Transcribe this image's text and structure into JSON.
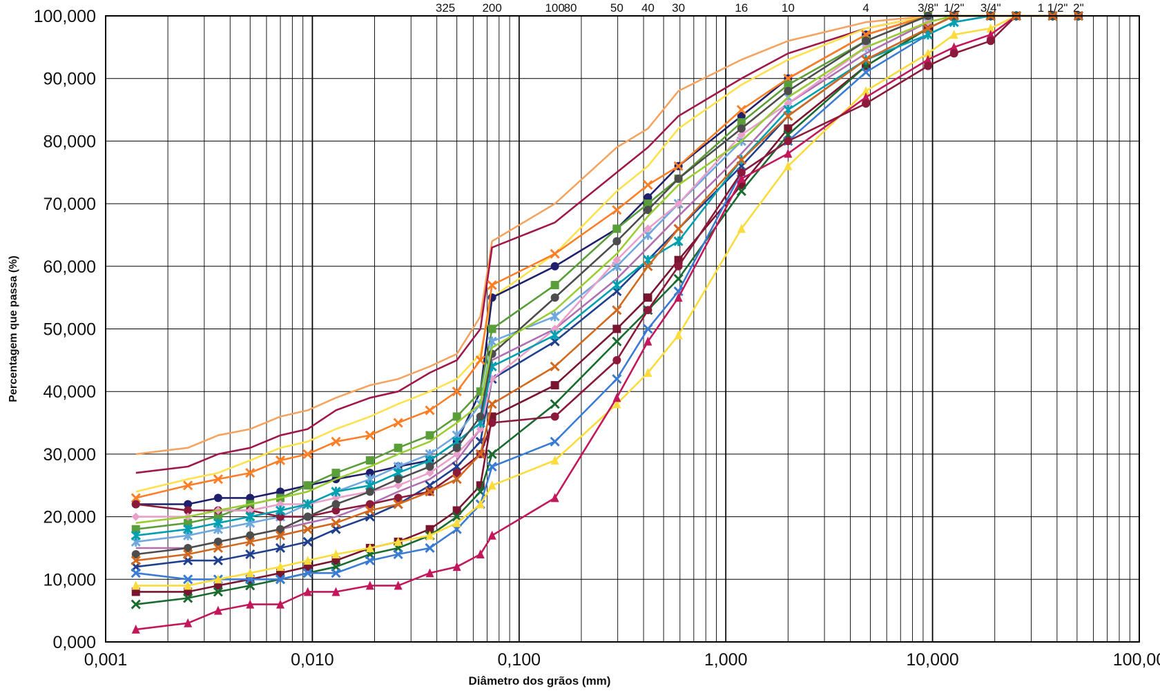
{
  "chart_data": {
    "type": "line",
    "title": "",
    "xlabel": "Diâmetro dos grãos (mm)",
    "ylabel": "Percentagem que passa (%)",
    "x_scale": "log",
    "xlim": [
      0.001,
      100
    ],
    "ylim": [
      0,
      100
    ],
    "grid": true,
    "legend": "none",
    "x_ticks": [
      {
        "v": 0.001,
        "label": "0,001"
      },
      {
        "v": 0.01,
        "label": "0,010"
      },
      {
        "v": 0.1,
        "label": "0,100"
      },
      {
        "v": 1,
        "label": "1,000"
      },
      {
        "v": 10,
        "label": "10,000"
      },
      {
        "v": 100,
        "label": "100,00"
      }
    ],
    "y_ticks": [
      {
        "v": 0,
        "label": "0,000"
      },
      {
        "v": 10,
        "label": "10,000"
      },
      {
        "v": 20,
        "label": "20,000"
      },
      {
        "v": 30,
        "label": "30,000"
      },
      {
        "v": 40,
        "label": "40,000"
      },
      {
        "v": 50,
        "label": "50,000"
      },
      {
        "v": 60,
        "label": "60,000"
      },
      {
        "v": 70,
        "label": "70,000"
      },
      {
        "v": 80,
        "label": "80,000"
      },
      {
        "v": 90,
        "label": "90,000"
      },
      {
        "v": 100,
        "label": "100,000"
      }
    ],
    "sieve_labels": [
      {
        "v": 0.044,
        "label": "325"
      },
      {
        "v": 0.074,
        "label": "200"
      },
      {
        "v": 0.149,
        "label": "100"
      },
      {
        "v": 0.177,
        "label": "80"
      },
      {
        "v": 0.297,
        "label": "50"
      },
      {
        "v": 0.42,
        "label": "40"
      },
      {
        "v": 0.59,
        "label": "30"
      },
      {
        "v": 1.19,
        "label": "16"
      },
      {
        "v": 2.0,
        "label": "10"
      },
      {
        "v": 4.76,
        "label": "4"
      },
      {
        "v": 9.5,
        "label": "3/8\""
      },
      {
        "v": 12.7,
        "label": "1/2\""
      },
      {
        "v": 19.1,
        "label": "3/4\""
      },
      {
        "v": 38.1,
        "label": "1 1/2\""
      },
      {
        "v": 50.8,
        "label": "2\""
      }
    ],
    "x": [
      0.0014,
      0.0025,
      0.0035,
      0.005,
      0.007,
      0.0095,
      0.013,
      0.019,
      0.026,
      0.037,
      0.05,
      0.065,
      0.074,
      0.149,
      0.297,
      0.42,
      0.59,
      1.19,
      2.0,
      4.76,
      9.5,
      12.7,
      19.1,
      25.4,
      38.1,
      50.8
    ],
    "series": [
      {
        "color": "#f4a460",
        "values": [
          30,
          31,
          33,
          34,
          36,
          37,
          39,
          41,
          42,
          44,
          46,
          52,
          64,
          70,
          79,
          82,
          88,
          93,
          96,
          99,
          100,
          100,
          100,
          100,
          100,
          100
        ]
      },
      {
        "color": "#a0184a",
        "values": [
          27,
          28,
          30,
          31,
          33,
          34,
          37,
          39,
          40,
          43,
          45,
          50,
          63,
          67,
          75,
          79,
          84,
          90,
          94,
          98,
          100,
          100,
          100,
          100,
          100,
          100
        ]
      },
      {
        "color": "#ffe14d",
        "values": [
          24,
          26,
          27,
          29,
          31,
          32,
          34,
          36,
          38,
          40,
          42,
          46,
          55,
          62,
          72,
          76,
          82,
          89,
          93,
          98,
          100,
          100,
          100,
          100,
          100,
          100
        ]
      },
      {
        "color": "#1f1f6b",
        "marker": "circle",
        "values": [
          22,
          22,
          23,
          23,
          24,
          25,
          26,
          27,
          28,
          29,
          32,
          40,
          55,
          60,
          66,
          71,
          76,
          84,
          90,
          97,
          100,
          100,
          100,
          100,
          100,
          100
        ]
      },
      {
        "color": "#ff7f27",
        "marker": "x",
        "values": [
          23,
          25,
          26,
          27,
          29,
          30,
          32,
          33,
          35,
          37,
          40,
          45,
          57,
          62,
          69,
          73,
          76,
          85,
          90,
          97,
          100,
          100,
          100,
          100,
          100,
          100
        ]
      },
      {
        "color": "#5a9e3a",
        "marker": "square",
        "values": [
          18,
          19,
          20,
          22,
          23,
          25,
          27,
          29,
          31,
          33,
          36,
          40,
          50,
          57,
          66,
          70,
          74,
          83,
          89,
          96,
          100,
          100,
          100,
          100,
          100,
          100
        ]
      },
      {
        "color": "#6fa8dc",
        "marker": "star",
        "values": [
          16,
          17,
          18,
          19,
          20,
          22,
          24,
          26,
          28,
          30,
          33,
          38,
          48,
          52,
          60,
          65,
          70,
          80,
          87,
          95,
          99,
          100,
          100,
          100,
          100,
          100
        ]
      },
      {
        "color": "#b06fb0",
        "values": [
          15,
          15,
          16,
          17,
          18,
          19,
          20,
          22,
          24,
          26,
          29,
          34,
          45,
          50,
          58,
          63,
          68,
          78,
          86,
          94,
          99,
          100,
          100,
          100,
          100,
          100
        ]
      },
      {
        "color": "#1f3f8f",
        "marker": "x",
        "values": [
          12,
          13,
          13,
          14,
          15,
          16,
          18,
          20,
          22,
          25,
          28,
          32,
          42,
          48,
          56,
          61,
          66,
          76,
          84,
          93,
          98,
          100,
          100,
          100,
          100,
          100
        ]
      },
      {
        "color": "#7a1530",
        "marker": "square",
        "values": [
          8,
          8,
          9,
          10,
          11,
          12,
          13,
          15,
          16,
          18,
          21,
          25,
          36,
          41,
          50,
          55,
          61,
          73,
          82,
          92,
          98,
          100,
          100,
          100,
          100,
          100
        ]
      },
      {
        "color": "#1a6b2f",
        "marker": "x",
        "values": [
          6,
          7,
          8,
          9,
          10,
          11,
          12,
          14,
          15,
          17,
          20,
          24,
          30,
          38,
          48,
          53,
          58,
          72,
          81,
          92,
          98,
          100,
          100,
          100,
          100,
          100
        ]
      },
      {
        "color": "#3a7bd5",
        "marker": "x",
        "values": [
          11,
          10,
          10,
          10,
          10,
          11,
          11,
          13,
          14,
          15,
          18,
          22,
          28,
          32,
          42,
          50,
          56,
          75,
          80,
          91,
          97,
          99,
          100,
          100,
          100,
          100
        ]
      },
      {
        "color": "#fcdc3c",
        "marker": "triangle",
        "values": [
          9,
          9,
          10,
          11,
          12,
          13,
          14,
          15,
          16,
          17,
          19,
          22,
          25,
          29,
          38,
          43,
          49,
          66,
          76,
          88,
          94,
          97,
          98,
          100,
          100,
          100
        ]
      },
      {
        "color": "#c2185b",
        "marker": "triangle",
        "values": [
          2,
          3,
          5,
          6,
          6,
          8,
          8,
          9,
          9,
          11,
          12,
          14,
          17,
          23,
          39,
          48,
          55,
          74,
          78,
          87,
          93,
          95,
          97,
          100,
          100,
          100
        ]
      },
      {
        "color": "#8b1a3a",
        "marker": "circle",
        "values": [
          22,
          21,
          21,
          21,
          20,
          20,
          21,
          22,
          23,
          24,
          27,
          30,
          35,
          36,
          45,
          53,
          60,
          75,
          80,
          86,
          92,
          94,
          96,
          100,
          100,
          100
        ]
      },
      {
        "color": "#e89fc9",
        "marker": "diamond",
        "values": [
          20,
          20,
          21,
          21,
          22,
          22,
          23,
          24,
          25,
          27,
          30,
          34,
          42,
          50,
          61,
          66,
          70,
          81,
          86,
          95,
          99,
          100,
          100,
          100,
          100,
          100
        ]
      },
      {
        "color": "#00a0b0",
        "marker": "star",
        "values": [
          17,
          18,
          19,
          20,
          21,
          22,
          24,
          25,
          27,
          29,
          32,
          35,
          44,
          49,
          57,
          61,
          64,
          77,
          85,
          93,
          97,
          99,
          100,
          100,
          100,
          100
        ]
      },
      {
        "color": "#4d4d4d",
        "marker": "circle",
        "values": [
          14,
          15,
          16,
          17,
          18,
          20,
          22,
          24,
          26,
          28,
          31,
          36,
          46,
          55,
          64,
          69,
          74,
          82,
          88,
          96,
          100,
          100,
          100,
          100,
          100,
          100
        ]
      },
      {
        "color": "#9acd32",
        "values": [
          19,
          20,
          21,
          22,
          23,
          24,
          26,
          28,
          30,
          32,
          35,
          38,
          47,
          53,
          62,
          68,
          73,
          80,
          87,
          95,
          99,
          100,
          100,
          100,
          100,
          100
        ]
      },
      {
        "color": "#d2691e",
        "marker": "x",
        "values": [
          13,
          14,
          15,
          16,
          17,
          18,
          19,
          21,
          22,
          24,
          26,
          30,
          38,
          44,
          53,
          60,
          66,
          77,
          84,
          93,
          98,
          100,
          100,
          100,
          100,
          100
        ]
      }
    ]
  }
}
